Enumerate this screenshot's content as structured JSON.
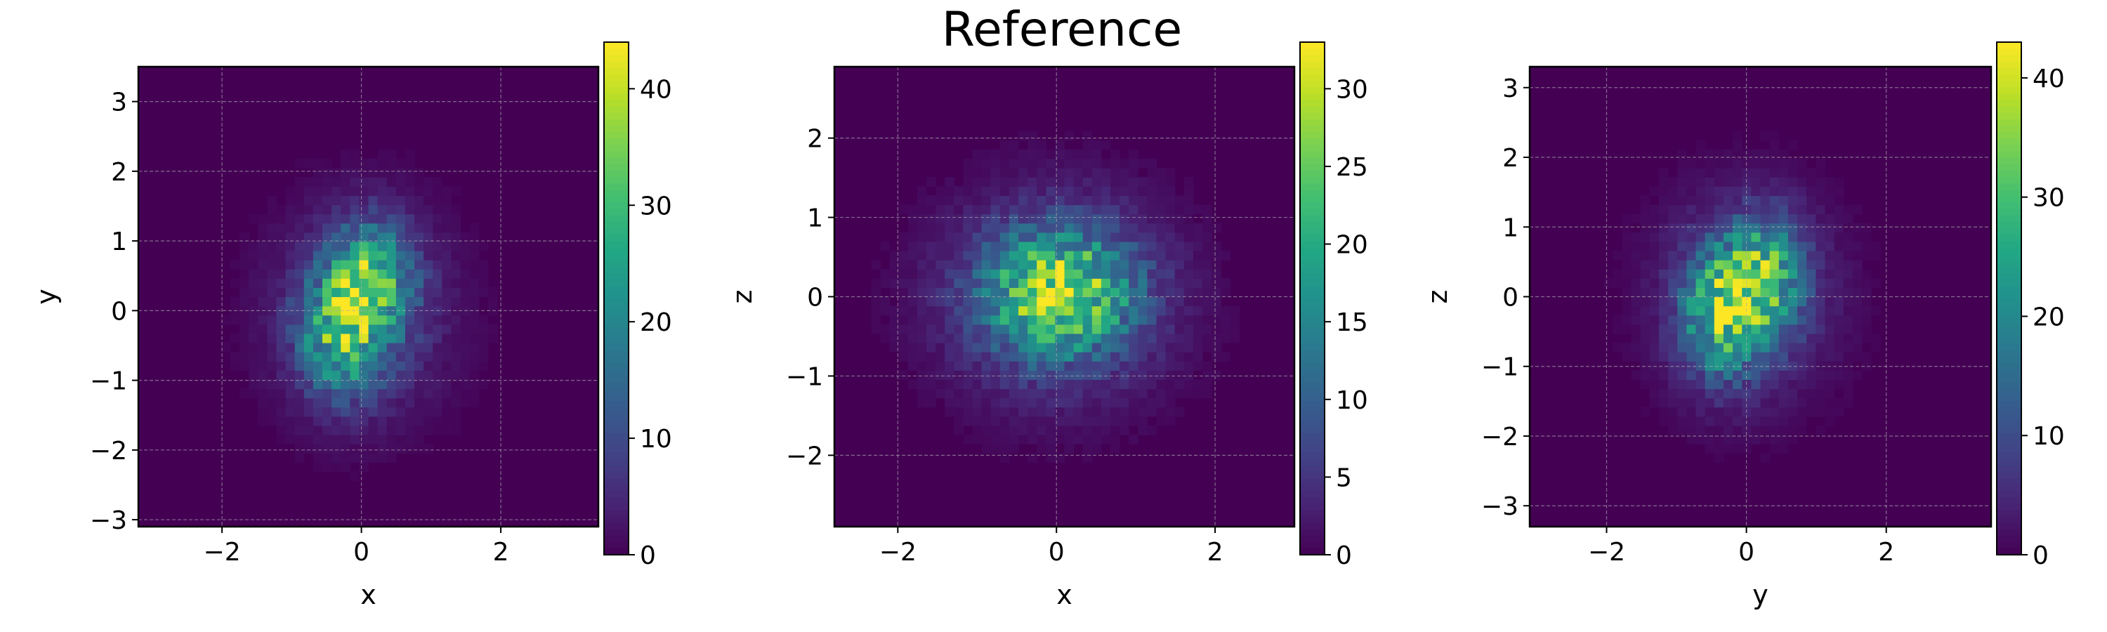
{
  "figure": {
    "title": "Reference"
  },
  "chart_data": [
    {
      "type": "heatmap",
      "title": "",
      "xlabel": "x",
      "ylabel": "y",
      "xlim": [
        -3.2,
        3.4
      ],
      "ylim": [
        -3.1,
        3.5
      ],
      "xticks": [
        -2,
        0,
        2
      ],
      "xtick_labels": [
        "−2",
        "0",
        "2"
      ],
      "yticks": [
        -3,
        -2,
        -1,
        0,
        1,
        2,
        3
      ],
      "ytick_labels": [
        "−3",
        "−2",
        "−1",
        "0",
        "1",
        "2",
        "3"
      ],
      "grid": true,
      "colorbar": {
        "min": 0,
        "max": 44,
        "ticks": [
          0,
          10,
          20,
          30,
          40
        ],
        "tick_labels": [
          "0",
          "10",
          "20",
          "30",
          "40"
        ],
        "colormap": "viridis"
      },
      "bins": 50,
      "density": {
        "peak": 44,
        "peaks": [
          {
            "x": 0.15,
            "y": 0.45,
            "sx": 0.38,
            "sy": 0.55,
            "a": 1.0
          },
          {
            "x": -0.3,
            "y": -0.35,
            "sx": 0.4,
            "sy": 0.6,
            "a": 0.95
          },
          {
            "x": 0.0,
            "y": 0.0,
            "sx": 0.8,
            "sy": 0.95,
            "a": 0.42
          }
        ]
      }
    },
    {
      "type": "heatmap",
      "title": "",
      "xlabel": "x",
      "ylabel": "z",
      "xlim": [
        -2.8,
        3.0
      ],
      "ylim": [
        -2.9,
        2.9
      ],
      "xticks": [
        -2,
        0,
        2
      ],
      "xtick_labels": [
        "−2",
        "0",
        "2"
      ],
      "yticks": [
        -2,
        -1,
        0,
        1,
        2
      ],
      "ytick_labels": [
        "−2",
        "−1",
        "0",
        "1",
        "2"
      ],
      "grid": true,
      "colorbar": {
        "min": 0,
        "max": 33,
        "ticks": [
          0,
          5,
          10,
          15,
          20,
          25,
          30
        ],
        "tick_labels": [
          "0",
          "5",
          "10",
          "15",
          "20",
          "25",
          "30"
        ],
        "colormap": "viridis"
      },
      "bins": 50,
      "density": {
        "peak": 33,
        "peaks": [
          {
            "x": 0.05,
            "y": 0.05,
            "sx": 0.6,
            "sy": 0.5,
            "a": 1.0
          },
          {
            "x": 0.0,
            "y": 0.0,
            "sx": 0.95,
            "sy": 0.85,
            "a": 0.45
          }
        ]
      }
    },
    {
      "type": "heatmap",
      "title": "",
      "xlabel": "y",
      "ylabel": "z",
      "xlim": [
        -3.1,
        3.5
      ],
      "ylim": [
        -3.3,
        3.3
      ],
      "xticks": [
        -2,
        0,
        2
      ],
      "xtick_labels": [
        "−2",
        "0",
        "2"
      ],
      "yticks": [
        -3,
        -2,
        -1,
        0,
        1,
        2,
        3
      ],
      "ytick_labels": [
        "−3",
        "−2",
        "−1",
        "0",
        "1",
        "2",
        "3"
      ],
      "grid": true,
      "colorbar": {
        "min": 0,
        "max": 43,
        "ticks": [
          0,
          10,
          20,
          30,
          40
        ],
        "tick_labels": [
          "0",
          "10",
          "20",
          "30",
          "40"
        ],
        "colormap": "viridis"
      },
      "bins": 50,
      "density": {
        "peak": 43,
        "peaks": [
          {
            "x": -0.35,
            "y": -0.25,
            "sx": 0.38,
            "sy": 0.6,
            "a": 1.0
          },
          {
            "x": 0.25,
            "y": 0.3,
            "sx": 0.38,
            "sy": 0.55,
            "a": 0.9
          },
          {
            "x": 0.0,
            "y": 0.0,
            "sx": 0.8,
            "sy": 0.95,
            "a": 0.4
          }
        ]
      }
    }
  ]
}
